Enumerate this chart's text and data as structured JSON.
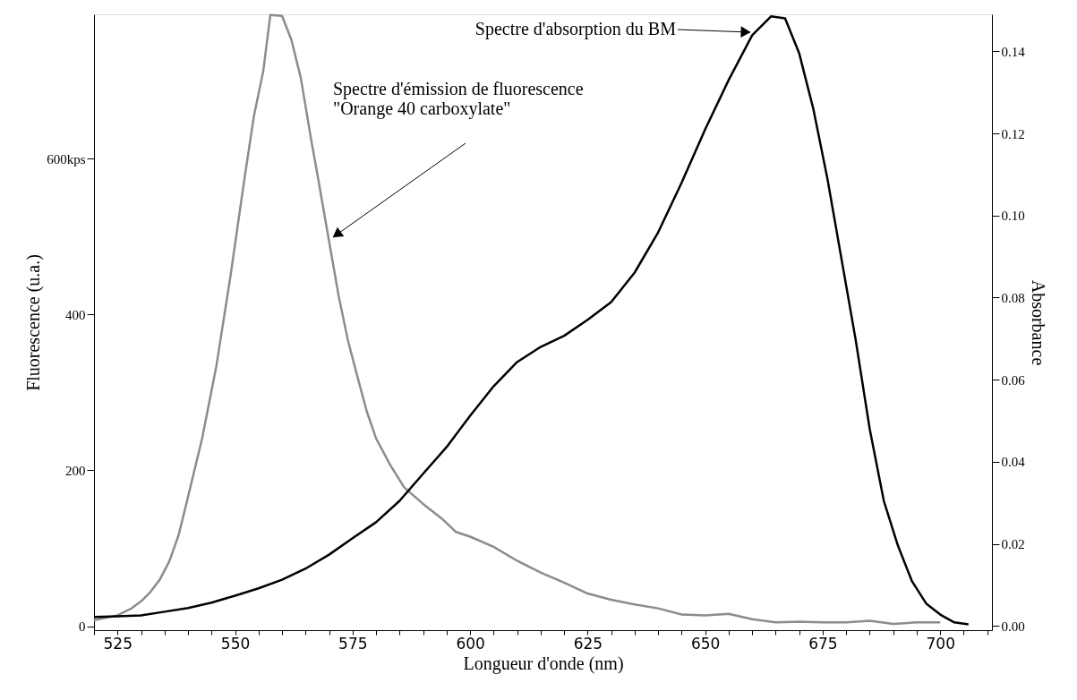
{
  "chart_data": {
    "type": "line",
    "xlabel": "Longueur d'onde (nm)",
    "ylabel": "Fluorescence (u.a.)",
    "y2label": "Absorbance",
    "xlim": [
      520,
      711
    ],
    "ylim": [
      -5,
      785
    ],
    "y2lim": [
      -0.001,
      0.149
    ],
    "xticks": [
      {
        "value": 520,
        "label": null
      },
      525,
      {
        "value": 530,
        "label": null
      },
      {
        "value": 535,
        "label": null
      },
      {
        "value": 540,
        "label": null
      },
      {
        "value": 545,
        "label": null
      },
      550,
      {
        "value": 555,
        "label": null
      },
      {
        "value": 560,
        "label": null
      },
      {
        "value": 565,
        "label": null
      },
      {
        "value": 570,
        "label": null
      },
      575,
      {
        "value": 580,
        "label": null
      },
      {
        "value": 585,
        "label": null
      },
      {
        "value": 590,
        "label": null
      },
      {
        "value": 595,
        "label": null
      },
      600,
      {
        "value": 605,
        "label": null
      },
      {
        "value": 610,
        "label": null
      },
      {
        "value": 615,
        "label": null
      },
      {
        "value": 620,
        "label": null
      },
      625,
      {
        "value": 630,
        "label": null
      },
      {
        "value": 635,
        "label": null
      },
      {
        "value": 640,
        "label": null
      },
      {
        "value": 645,
        "label": null
      },
      650,
      {
        "value": 655,
        "label": null
      },
      {
        "value": 660,
        "label": null
      },
      {
        "value": 665,
        "label": null
      },
      {
        "value": 670,
        "label": null
      },
      675,
      {
        "value": 680,
        "label": null
      },
      {
        "value": 685,
        "label": null
      },
      {
        "value": 690,
        "label": null
      },
      {
        "value": 695,
        "label": null
      },
      700,
      {
        "value": 705,
        "label": null
      },
      {
        "value": 710,
        "label": null
      }
    ],
    "yticks": [
      0,
      200,
      400,
      {
        "value": 600,
        "label": "600kps"
      }
    ],
    "y2ticks": [
      {
        "value": 0,
        "label": "0.00"
      },
      {
        "value": 0.02,
        "label": "0.02"
      },
      {
        "value": 0.04,
        "label": "0.04"
      },
      {
        "value": 0.06,
        "label": "0.06"
      },
      {
        "value": 0.08,
        "label": "0.08"
      },
      {
        "value": 0.1,
        "label": "0.10"
      },
      {
        "value": 0.12,
        "label": "0.12"
      },
      {
        "value": 0.14,
        "label": "0.14"
      }
    ],
    "grid": false,
    "marker": "none",
    "line_style": "solid",
    "series": [
      {
        "color": "#8c8c8c",
        "x": [
          520,
          525,
          528,
          530,
          532,
          534,
          536,
          538,
          540,
          543,
          546,
          549,
          552,
          554,
          556,
          557.5,
          560,
          562,
          564,
          566,
          568,
          570,
          572,
          574,
          576,
          578,
          580,
          583,
          586,
          590,
          594,
          597,
          600,
          605,
          610,
          615,
          620,
          625,
          630,
          635,
          640,
          645,
          650,
          655,
          660,
          665,
          670,
          675,
          680,
          685,
          690,
          695,
          700
        ],
        "values": [
          8,
          14,
          23,
          32,
          44,
          60,
          83,
          117,
          166,
          241,
          333,
          448,
          574,
          654,
          712,
          784,
          783,
          752,
          703,
          631,
          563,
          494,
          425,
          367,
          321,
          276,
          241,
          207,
          178,
          157,
          138,
          121,
          115,
          102,
          84,
          69,
          56,
          42,
          34,
          28,
          23,
          15,
          14,
          16,
          9,
          5,
          6,
          5,
          5,
          7,
          3,
          5,
          5
        ]
      },
      {
        "color": "#000000",
        "axis": "y2",
        "x": [
          520,
          525,
          530,
          535,
          540,
          545,
          550,
          555,
          560,
          565,
          570,
          575,
          580,
          585,
          590,
          595,
          600,
          605,
          610,
          615,
          620,
          625,
          630,
          635,
          640,
          645,
          650,
          655,
          660,
          664,
          667,
          670,
          673,
          676,
          679,
          682,
          685,
          688,
          691,
          694,
          697,
          700,
          703,
          706
        ],
        "values": [
          0.0022,
          0.0024,
          0.0026,
          0.0035,
          0.0044,
          0.0057,
          0.0074,
          0.0092,
          0.0113,
          0.014,
          0.0174,
          0.0214,
          0.0253,
          0.0305,
          0.0371,
          0.0436,
          0.0512,
          0.0584,
          0.0643,
          0.068,
          0.0707,
          0.0746,
          0.0789,
          0.0861,
          0.0959,
          0.108,
          0.121,
          0.133,
          0.1439,
          0.1485,
          0.148,
          0.1395,
          0.126,
          0.109,
          0.0894,
          0.0698,
          0.048,
          0.0305,
          0.0196,
          0.0109,
          0.0055,
          0.0028,
          0.0009,
          0.0004
        ]
      }
    ],
    "annotations": [
      "Spectre d'absorption du BM",
      "Spectre d'émission de fluorescence\n\"Orange 40 carboxylate\""
    ]
  }
}
